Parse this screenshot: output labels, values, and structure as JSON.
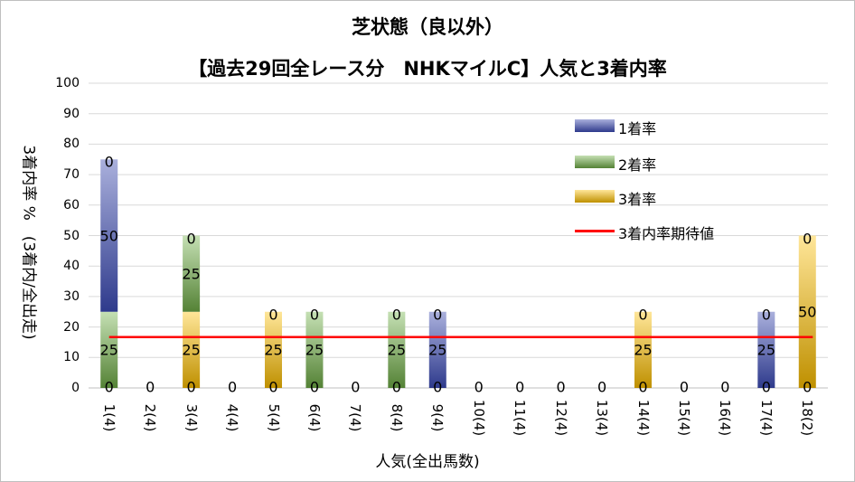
{
  "chart_data": {
    "type": "bar",
    "title": "芝状態（良以外）",
    "subtitle": "【過去29回全レース分　NHKマイルC】人気と3着内率",
    "xlabel": "人気(全出馬数)",
    "ylabel": "3着内率 %　(3着内/全出走)",
    "ylim": [
      0,
      100
    ],
    "yticks": [
      0,
      10,
      20,
      30,
      40,
      50,
      60,
      70,
      80,
      90,
      100
    ],
    "grid": true,
    "legend_position": "top-right",
    "categories": [
      "1(4)",
      "2(4)",
      "3(4)",
      "4(4)",
      "5(4)",
      "6(4)",
      "7(4)",
      "8(4)",
      "9(4)",
      "10(4)",
      "11(4)",
      "12(4)",
      "13(4)",
      "14(4)",
      "15(4)",
      "16(4)",
      "17(4)",
      "18(2)"
    ],
    "series": [
      {
        "name": "1着率",
        "color": "#2e3a8c",
        "values": [
          50,
          0,
          0,
          0,
          0,
          0,
          0,
          0,
          25,
          0,
          0,
          0,
          0,
          0,
          0,
          0,
          25,
          0
        ]
      },
      {
        "name": "2着率",
        "color": "#548235",
        "values": [
          25,
          0,
          25,
          0,
          0,
          25,
          0,
          25,
          0,
          0,
          0,
          0,
          0,
          0,
          0,
          0,
          0,
          0
        ]
      },
      {
        "name": "3着率",
        "color": "#bf9000",
        "values": [
          0,
          0,
          25,
          0,
          25,
          0,
          0,
          0,
          0,
          0,
          0,
          0,
          0,
          25,
          0,
          0,
          0,
          50
        ]
      }
    ],
    "expected_line": {
      "name": "3着内率期待値",
      "color": "#ff0000",
      "value": 16.7
    }
  }
}
